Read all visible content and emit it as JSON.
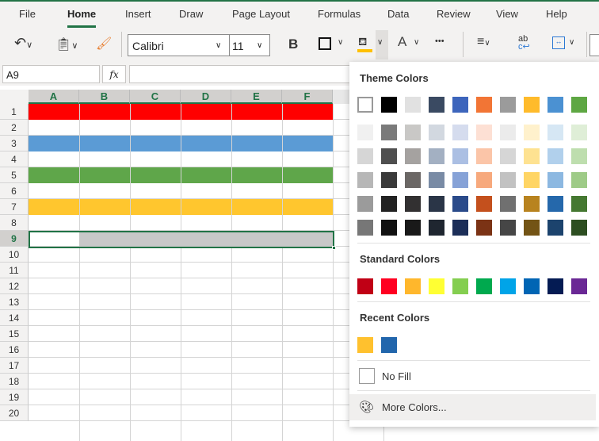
{
  "ribbon": {
    "tabs": [
      "File",
      "Home",
      "Insert",
      "Draw",
      "Page Layout",
      "Formulas",
      "Data",
      "Review",
      "View",
      "Help"
    ],
    "active_tab": "Home",
    "font_name": "Calibri",
    "font_size": "11",
    "bold_label": "B",
    "more_label": "•••",
    "fill_color": "#ffc000"
  },
  "formula_bar": {
    "name_box": "A9",
    "fx_label": "fx",
    "formula": ""
  },
  "sheet": {
    "columns": [
      "A",
      "B",
      "C",
      "D",
      "E",
      "F"
    ],
    "rows": [
      "1",
      "2",
      "3",
      "4",
      "5",
      "6",
      "7",
      "8",
      "9",
      "10",
      "11",
      "12",
      "13",
      "14",
      "15",
      "16",
      "17",
      "18",
      "19",
      "20"
    ],
    "selected_row": "9",
    "row_fills": {
      "1": "#ff0000",
      "3": "#5b9bd5",
      "5": "#5fa64a",
      "7": "#ffc62e"
    }
  },
  "color_menu": {
    "theme_label": "Theme Colors",
    "theme_colors": [
      "#ffffff",
      "#000000",
      "#e1e1e1",
      "#3a4a62",
      "#3d65bc",
      "#f27535",
      "#9b9b9b",
      "#ffbb2b",
      "#4b91d2",
      "#5ea743"
    ],
    "theme_shades": [
      [
        "#f0f0f0",
        "#7a7a7a",
        "#c9c8c6",
        "#d2d8e0",
        "#d5dcee",
        "#fde0d4",
        "#ebebeb",
        "#fff1cc",
        "#d6e7f4",
        "#dfeed7"
      ],
      [
        "#d6d6d6",
        "#4f4f4f",
        "#a5a2a0",
        "#a3b0c2",
        "#abbfe3",
        "#fbc5a8",
        "#d6d6d6",
        "#fee291",
        "#b1d0ec",
        "#bedeae"
      ],
      [
        "#b7b7b7",
        "#3a3a3a",
        "#6b6765",
        "#798ba5",
        "#86a2d7",
        "#f7a97d",
        "#c2c2c2",
        "#ffd564",
        "#8cb8e1",
        "#9ecb87"
      ],
      [
        "#9b9b9b",
        "#222222",
        "#323031",
        "#2a3547",
        "#2a4a8a",
        "#c4501d",
        "#707070",
        "#b8831f",
        "#2568ab",
        "#457831"
      ],
      [
        "#777777",
        "#111111",
        "#191919",
        "#1f2630",
        "#1c2e58",
        "#7b3315",
        "#464646",
        "#735415",
        "#1c436d",
        "#2d4e21"
      ]
    ],
    "standard_label": "Standard Colors",
    "standard_colors": [
      "#c00015",
      "#ff0021",
      "#ffb72c",
      "#ffff33",
      "#84ce50",
      "#00a94e",
      "#00a4e8",
      "#0065b4",
      "#041b53",
      "#6a2895"
    ],
    "recent_label": "Recent Colors",
    "recent_colors": [
      "#ffc12e",
      "#2266ac"
    ],
    "no_fill_label": "No Fill",
    "more_colors_label": "More Colors..."
  }
}
